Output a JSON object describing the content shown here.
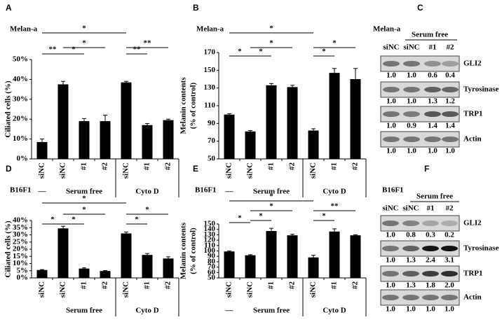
{
  "chart_data": [
    {
      "type": "bar",
      "panel": "A",
      "title": "Melan-a",
      "ylabel": "Ciliated cells (%)",
      "categories": [
        "siNC",
        "siNC",
        "#1",
        "#2",
        "siNC",
        "#1",
        "#2"
      ],
      "values": [
        8.5,
        37.5,
        19,
        19,
        38.5,
        17,
        19.5
      ],
      "errors": [
        1.5,
        1.5,
        1.3,
        3,
        0.5,
        0.8,
        0.5
      ],
      "color": "#000000",
      "ylim": [
        0,
        50
      ],
      "yticks": [
        {
          "value": 0,
          "label": "0%"
        },
        {
          "value": 10,
          "label": "10%"
        },
        {
          "value": 20,
          "label": "20%"
        },
        {
          "value": 30,
          "label": "30%"
        },
        {
          "value": 40,
          "label": "40%"
        },
        {
          "value": 50,
          "label": "50%"
        }
      ],
      "groups": [
        "—",
        "Serum free",
        "Cyto D"
      ],
      "annotations": [
        "*",
        "**",
        "*",
        "*",
        "**",
        "**"
      ]
    },
    {
      "type": "bar",
      "panel": "B",
      "title": "Melan-a",
      "ylabel": "Melanin contents",
      "ylabel2": "(% of control)",
      "categories": [
        "siNC",
        "siNC",
        "#1",
        "#2",
        "siNC",
        "#1",
        "#2"
      ],
      "values": [
        100,
        81,
        133,
        131,
        82,
        147,
        140
      ],
      "errors": [
        1,
        1,
        2,
        2,
        2,
        5,
        12
      ],
      "color": "#000000",
      "ylim": [
        50,
        170
      ],
      "yticks": [
        50,
        70,
        90,
        110,
        130,
        150,
        170
      ],
      "groups": [
        "—",
        "Serum free",
        "Cyto D"
      ],
      "annotations": [
        "*",
        "*",
        "*",
        "*",
        "*",
        "*"
      ]
    },
    {
      "type": "bar",
      "panel": "D",
      "title": "B16F1",
      "ylabel": "Ciliated cells (%)",
      "categories": [
        "siNC",
        "siNC",
        "#1",
        "#2",
        "siNC",
        "#1",
        "#2"
      ],
      "values": [
        5.5,
        34.5,
        6.5,
        4.8,
        31,
        16,
        13.5
      ],
      "errors": [
        0.3,
        1.5,
        0.5,
        0.3,
        1,
        1,
        1.2
      ],
      "color": "#000000",
      "ylim": [
        0,
        40
      ],
      "yticks": [
        {
          "value": 0,
          "label": "0%"
        },
        {
          "value": 5,
          "label": "5%"
        },
        {
          "value": 10,
          "label": "10%"
        },
        {
          "value": 15,
          "label": "15%"
        },
        {
          "value": 20,
          "label": "20%"
        },
        {
          "value": 25,
          "label": "25%"
        },
        {
          "value": 30,
          "label": "30%"
        },
        {
          "value": 35,
          "label": "35%"
        },
        {
          "value": 40,
          "label": "40%"
        }
      ],
      "groups": [
        "Serum free",
        "Cyto D"
      ],
      "annotations": [
        "*",
        "*",
        "*",
        "*",
        "*",
        "*"
      ]
    },
    {
      "type": "bar",
      "panel": "E",
      "title": "B16F1",
      "ylabel": "Melanin contents",
      "ylabel2": "(% of control)",
      "categories": [
        "siNC",
        "siNC",
        "#1",
        "#2",
        "siNC",
        "#1",
        "#2"
      ],
      "values": [
        99,
        92,
        137,
        129,
        88,
        136,
        129
      ],
      "errors": [
        1,
        1,
        5,
        2,
        4,
        5,
        1
      ],
      "color": "#000000",
      "ylim": [
        50,
        150
      ],
      "yticks": [
        50,
        60,
        70,
        80,
        90,
        100,
        110,
        120,
        130,
        140,
        150
      ],
      "groups": [
        "—",
        "Serum free",
        "Cyto D"
      ],
      "annotations": [
        "*",
        "*",
        "*",
        "*",
        "**",
        "*"
      ]
    }
  ],
  "blots": [
    {
      "panel": "C",
      "title": "Melan-a",
      "condition": "Serum free",
      "lanes": [
        "siNC",
        "siNC",
        "#1",
        "#2"
      ],
      "rows": [
        {
          "protein": "GLI2",
          "quant": [
            "1.0",
            "1.0",
            "0.6",
            "0.4"
          ]
        },
        {
          "protein": "Tyrosinase",
          "quant": [
            "1.0",
            "1.0",
            "1.3",
            "1.2"
          ]
        },
        {
          "protein": "TRP1",
          "quant": [
            "1.0",
            "0.9",
            "1.4",
            "1.4"
          ]
        },
        {
          "protein": "Actin",
          "quant": [
            "1.0",
            "1.0",
            "1.0",
            "1.0"
          ]
        }
      ]
    },
    {
      "panel": "F",
      "title": "B16F1",
      "condition": "Serum free",
      "lanes": [
        "siNC",
        "siNC",
        "#1",
        "#2"
      ],
      "rows": [
        {
          "protein": "GLI2",
          "quant": [
            "1.0",
            "0.8",
            "0.3",
            "0.2"
          ]
        },
        {
          "protein": "Tyrosinase",
          "quant": [
            "1.0",
            "1.3",
            "2.4",
            "3.1"
          ]
        },
        {
          "protein": "TRP1",
          "quant": [
            "1.0",
            "1.3",
            "1.8",
            "2.0"
          ]
        },
        {
          "protein": "Actin",
          "quant": [
            "1.0",
            "1.0",
            "1.0",
            "1.0"
          ]
        }
      ]
    }
  ]
}
